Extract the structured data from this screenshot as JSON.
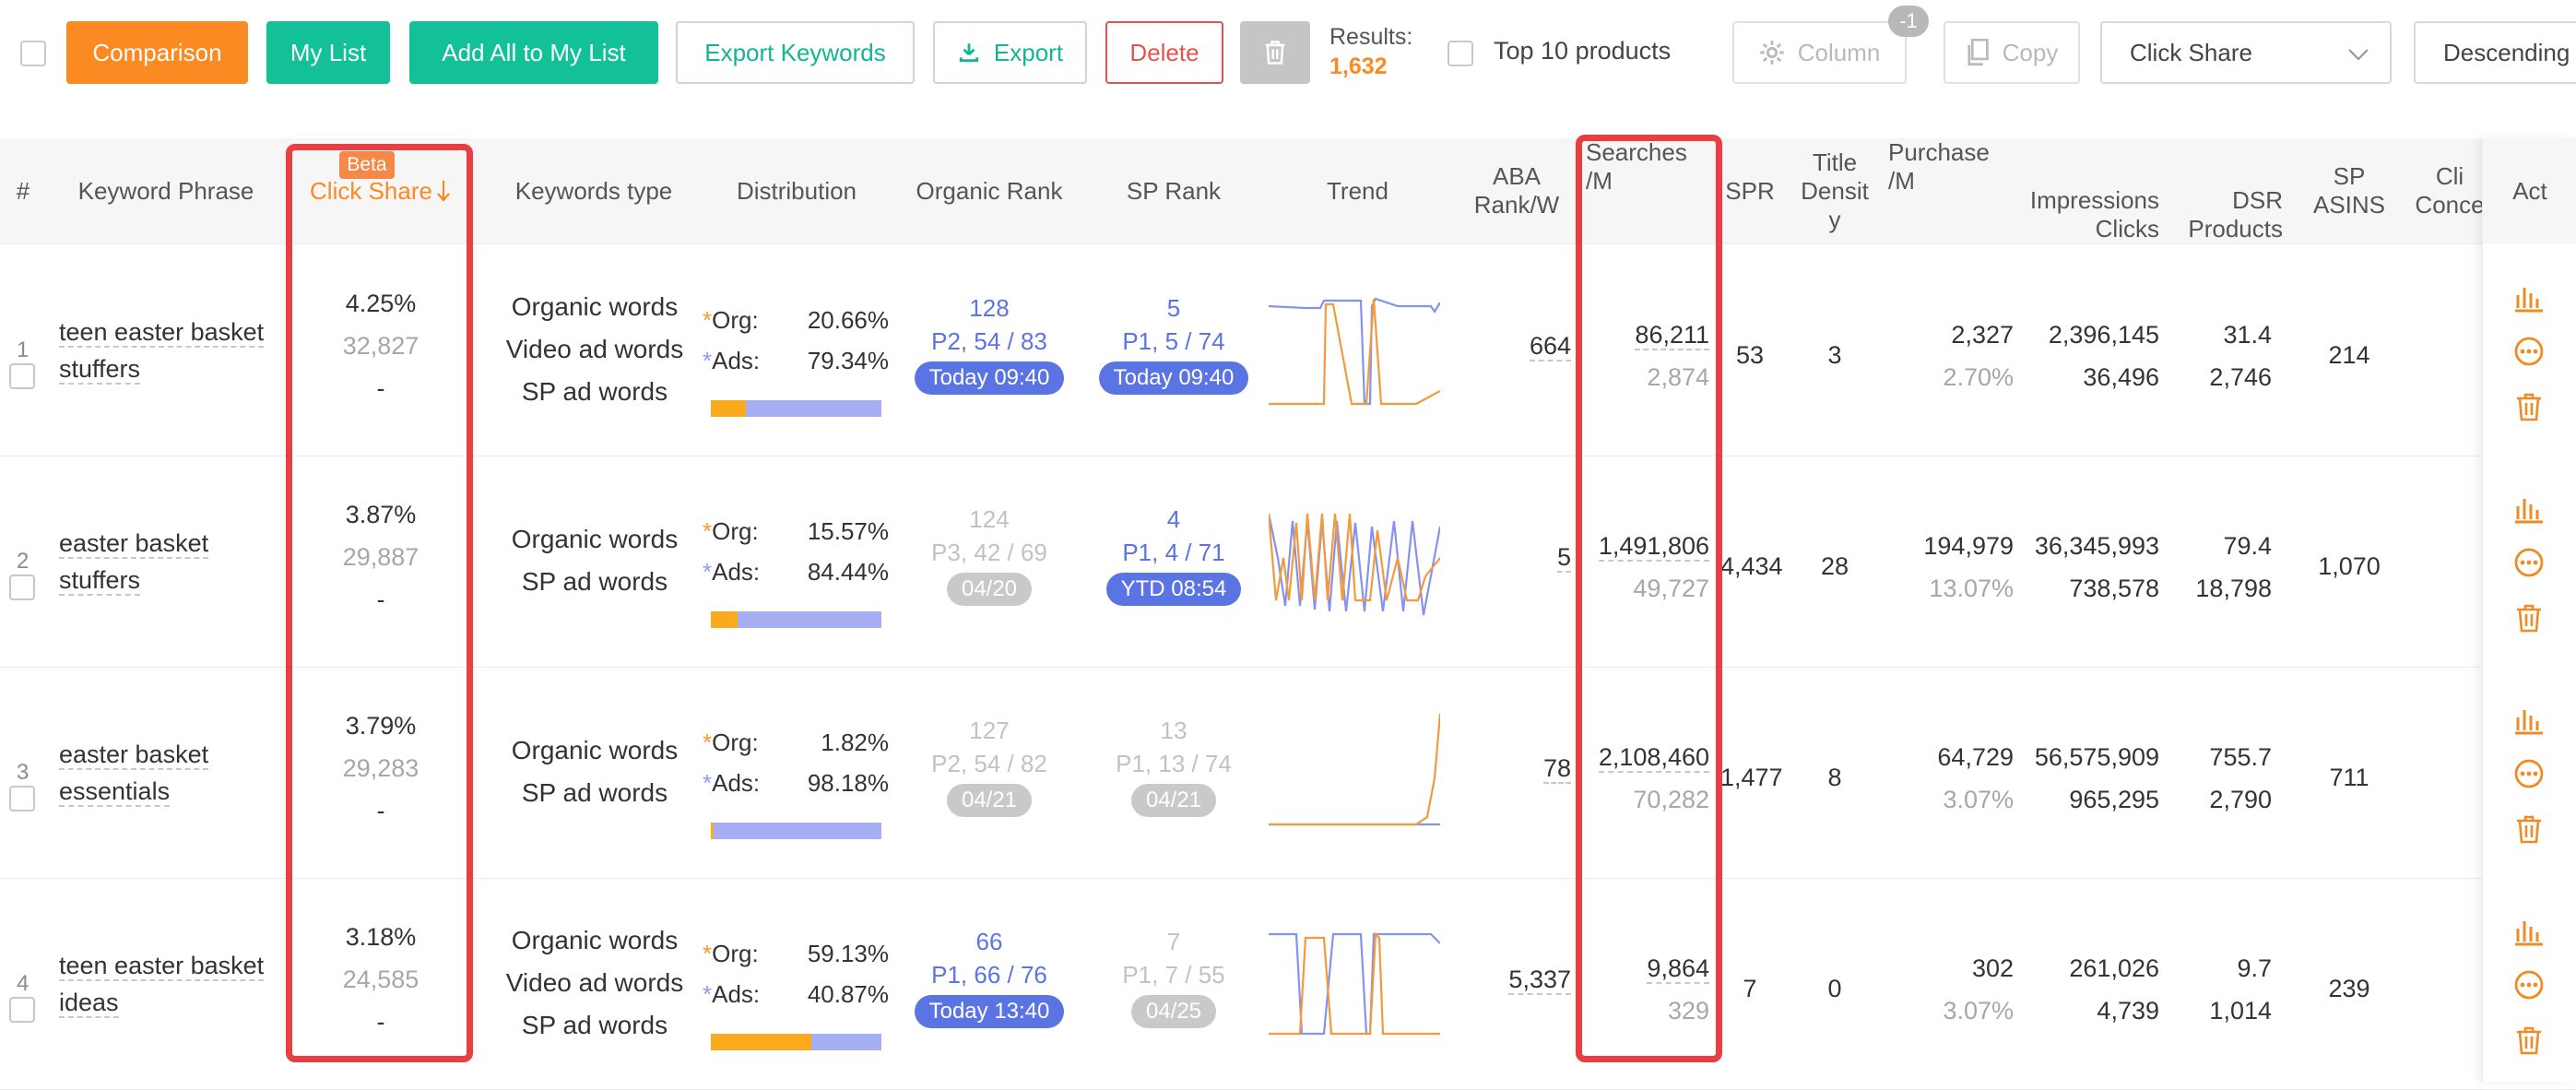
{
  "toolbar": {
    "comparison": "Comparison",
    "my_list": "My List",
    "add_all": "Add All to My List",
    "export_keywords": "Export Keywords",
    "export": "Export",
    "delete": "Delete",
    "results_label": "Results:",
    "results_value": "1,632",
    "top10_label": "Top 10 products",
    "column": "Column",
    "column_badge": "-1",
    "copy": "Copy",
    "sort_field": "Click Share",
    "sort_order": "Descending"
  },
  "columns": {
    "index": "#",
    "keyword": "Keyword Phrase",
    "click_share": "Click Share",
    "click_share_badge": "Beta",
    "keywords_type": "Keywords type",
    "distribution": "Distribution",
    "organic_rank": "Organic Rank",
    "sp_rank": "SP Rank",
    "trend": "Trend",
    "aba_1": "ABA",
    "aba_2": "Rank/W",
    "searches_1": "Searches",
    "searches_2": "/M",
    "spr": "SPR",
    "title_1": "Title",
    "title_2": "Densit",
    "title_3": "y",
    "purchase_1": "Purchase",
    "purchase_2": "/M",
    "impressions_1": "Impressions",
    "impressions_2": "Clicks",
    "dsr_1": "DSR",
    "dsr_2": "Products",
    "sp_asins_1": "SP",
    "sp_asins_2": "ASINS",
    "click_conc_1": "Cli",
    "click_conc_2": "Conce",
    "actions": "Act"
  },
  "dist_labels": {
    "org": "Org:",
    "ads": "Ads:",
    "star": "*"
  },
  "rows": [
    {
      "index": "1",
      "keyword_1": "teen easter basket",
      "keyword_2": "stuffers",
      "click_share": "4.25%",
      "click_count": "32,827",
      "click_extra": "-",
      "types": [
        "Organic words",
        "Video ad words",
        "SP ad words"
      ],
      "org_pct": "20.66%",
      "ads_pct": "79.34%",
      "org_fraction": 0.2066,
      "organic_rank": "128",
      "organic_pos": "P2, 54 / 83",
      "organic_time": "Today 09:40",
      "organic_active": true,
      "sp_rank": "5",
      "sp_pos": "P1, 5 / 74",
      "sp_time": "Today 09:40",
      "sp_active": true,
      "aba": "664",
      "searches": "86,211",
      "searches_daily": "2,874",
      "spr": "53",
      "title_density": "3",
      "purchase": "2,327",
      "purchase_rate": "2.70%",
      "impressions": "2,396,145",
      "clicks": "36,496",
      "dsr": "31.4",
      "products": "2,746",
      "sp_asins": "214"
    },
    {
      "index": "2",
      "keyword_1": "easter basket",
      "keyword_2": "stuffers",
      "click_share": "3.87%",
      "click_count": "29,887",
      "click_extra": "-",
      "types": [
        "Organic words",
        "SP ad words"
      ],
      "org_pct": "15.57%",
      "ads_pct": "84.44%",
      "org_fraction": 0.1557,
      "organic_rank": "124",
      "organic_pos": "P3, 42 / 69",
      "organic_time": "04/20",
      "organic_active": false,
      "sp_rank": "4",
      "sp_pos": "P1, 4 / 71",
      "sp_time": "YTD 08:54",
      "sp_active": true,
      "aba": "5",
      "searches": "1,491,806",
      "searches_daily": "49,727",
      "spr": "4,434",
      "title_density": "28",
      "purchase": "194,979",
      "purchase_rate": "13.07%",
      "impressions": "36,345,993",
      "clicks": "738,578",
      "dsr": "79.4",
      "products": "18,798",
      "sp_asins": "1,070"
    },
    {
      "index": "3",
      "keyword_1": "easter basket",
      "keyword_2": "essentials",
      "click_share": "3.79%",
      "click_count": "29,283",
      "click_extra": "-",
      "types": [
        "Organic words",
        "SP ad words"
      ],
      "org_pct": "1.82%",
      "ads_pct": "98.18%",
      "org_fraction": 0.0182,
      "organic_rank": "127",
      "organic_pos": "P2, 54 / 82",
      "organic_time": "04/21",
      "organic_active": false,
      "sp_rank": "13",
      "sp_pos": "P1, 13 / 74",
      "sp_time": "04/21",
      "sp_active": false,
      "aba": "78",
      "searches": "2,108,460",
      "searches_daily": "70,282",
      "spr": "1,477",
      "title_density": "8",
      "purchase": "64,729",
      "purchase_rate": "3.07%",
      "impressions": "56,575,909",
      "clicks": "965,295",
      "dsr": "755.7",
      "products": "2,790",
      "sp_asins": "711"
    },
    {
      "index": "4",
      "keyword_1": "teen easter basket",
      "keyword_2": "ideas",
      "click_share": "3.18%",
      "click_count": "24,585",
      "click_extra": "-",
      "types": [
        "Organic words",
        "Video ad words",
        "SP ad words"
      ],
      "org_pct": "59.13%",
      "ads_pct": "40.87%",
      "org_fraction": 0.5913,
      "organic_rank": "66",
      "organic_pos": "P1, 66 / 76",
      "organic_time": "Today 13:40",
      "organic_active": true,
      "sp_rank": "7",
      "sp_pos": "P1, 7 / 55",
      "sp_time": "04/25",
      "sp_active": false,
      "aba": "5,337",
      "searches": "9,864",
      "searches_daily": "329",
      "spr": "7",
      "title_density": "0",
      "purchase": "302",
      "purchase_rate": "3.07%",
      "impressions": "261,026",
      "clicks": "4,739",
      "dsr": "9.7",
      "products": "1,014",
      "sp_asins": "239"
    }
  ],
  "colors": {
    "accent_orange": "#fb8a22",
    "teal": "#12c198",
    "rank_blue": "#5b74e3",
    "highlight_red": "#ea3f42",
    "trend_orange": "#f59a3c",
    "trend_blue": "#8592ee"
  },
  "icons": {
    "select_all": "checkbox-icon",
    "export": "download-icon",
    "trash": "trash-icon",
    "column": "gear-icon",
    "copy": "copy-icon",
    "dropdown": "chevron-down-icon",
    "sort": "arrow-down-icon",
    "row_chart": "bar-chart-icon",
    "row_more": "more-icon",
    "row_delete": "trash-icon"
  }
}
